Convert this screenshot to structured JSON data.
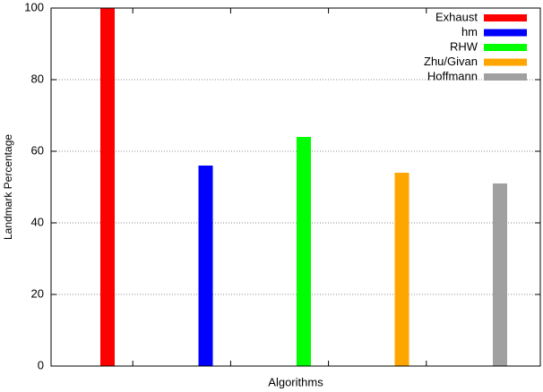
{
  "chart_data": {
    "type": "bar",
    "x_label": "Algorithms",
    "y_label": "Landmark Percentage",
    "series": [
      {
        "name": "Exhaust",
        "color": "#ff0000",
        "values": [
          100
        ]
      },
      {
        "name": "hm",
        "color": "#0000ff",
        "values": [
          56
        ]
      },
      {
        "name": "RHW",
        "color": "#00ff00",
        "values": [
          64
        ]
      },
      {
        "name": "Zhu/Givan",
        "color": "#ffa500",
        "values": [
          54
        ]
      },
      {
        "name": "Hoffmann",
        "color": "#a0a0a0",
        "values": [
          51
        ]
      }
    ],
    "ylim": [
      0,
      100
    ],
    "yticks": [
      0,
      20,
      40,
      60,
      80,
      100
    ],
    "grid": true,
    "legend": "top-right"
  }
}
